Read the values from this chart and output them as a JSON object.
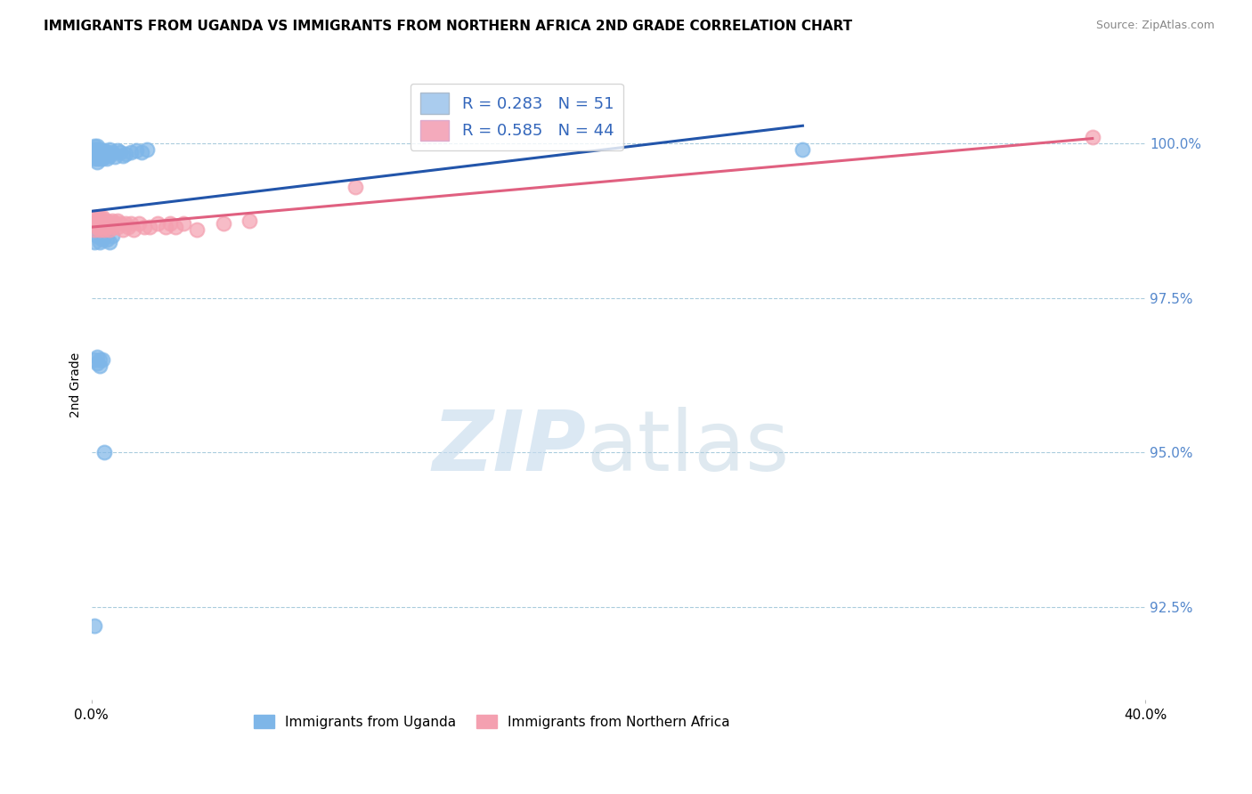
{
  "title": "IMMIGRANTS FROM UGANDA VS IMMIGRANTS FROM NORTHERN AFRICA 2ND GRADE CORRELATION CHART",
  "source": "Source: ZipAtlas.com",
  "xlabel_bottom": "Immigrants from Uganda",
  "xlabel_right_label": "Immigrants from Northern Africa",
  "ylabel": "2nd Grade",
  "xlim": [
    0.0,
    0.4
  ],
  "ylim": [
    0.91,
    1.012
  ],
  "x_ticks": [
    0.0,
    0.4
  ],
  "x_tick_labels": [
    "0.0%",
    "40.0%"
  ],
  "y_ticks": [
    0.925,
    0.95,
    0.975,
    1.0
  ],
  "y_tick_labels": [
    "92.5%",
    "95.0%",
    "97.5%",
    "100.0%"
  ],
  "legend_R_blue": "0.283",
  "legend_N_blue": "51",
  "legend_R_pink": "0.585",
  "legend_N_pink": "44",
  "blue_color": "#7EB6E8",
  "pink_color": "#F4A0B0",
  "blue_line_color": "#2255AA",
  "pink_line_color": "#E06080",
  "blue_legend_color": "#AACCEE",
  "pink_legend_color": "#F4AABC",
  "uganda_x": [
    0.001,
    0.001,
    0.001,
    0.001,
    0.001,
    0.002,
    0.002,
    0.002,
    0.002,
    0.002,
    0.002,
    0.003,
    0.003,
    0.003,
    0.003,
    0.004,
    0.004,
    0.005,
    0.005,
    0.006,
    0.006,
    0.007,
    0.007,
    0.008,
    0.009,
    0.01,
    0.011,
    0.012,
    0.013,
    0.015,
    0.017,
    0.019,
    0.021,
    0.001,
    0.002,
    0.003,
    0.003,
    0.004,
    0.005,
    0.006,
    0.007,
    0.008,
    0.001,
    0.002,
    0.002,
    0.003,
    0.003,
    0.004,
    0.005,
    0.001,
    0.27
  ],
  "uganda_y": [
    0.999,
    0.998,
    0.9995,
    0.9985,
    0.9975,
    0.999,
    0.9985,
    0.9975,
    0.9995,
    0.998,
    0.997,
    0.9985,
    0.9975,
    0.999,
    0.998,
    0.9985,
    0.9975,
    0.9988,
    0.9978,
    0.9985,
    0.9975,
    0.999,
    0.998,
    0.9985,
    0.9978,
    0.9988,
    0.9985,
    0.998,
    0.9982,
    0.9985,
    0.9988,
    0.9985,
    0.999,
    0.984,
    0.985,
    0.9855,
    0.984,
    0.9845,
    0.985,
    0.9845,
    0.984,
    0.985,
    0.965,
    0.9655,
    0.9645,
    0.965,
    0.964,
    0.965,
    0.95,
    0.922,
    0.999
  ],
  "nafr_x": [
    0.001,
    0.001,
    0.001,
    0.002,
    0.002,
    0.002,
    0.003,
    0.003,
    0.003,
    0.003,
    0.004,
    0.004,
    0.004,
    0.005,
    0.005,
    0.006,
    0.006,
    0.007,
    0.007,
    0.008,
    0.008,
    0.009,
    0.01,
    0.01,
    0.011,
    0.012,
    0.013,
    0.014,
    0.015,
    0.016,
    0.018,
    0.02,
    0.022,
    0.025,
    0.028,
    0.03,
    0.032,
    0.035,
    0.04,
    0.05,
    0.06,
    0.1,
    0.38,
    0.003
  ],
  "nafr_y": [
    0.988,
    0.987,
    0.986,
    0.9875,
    0.9865,
    0.988,
    0.987,
    0.988,
    0.986,
    0.987,
    0.9875,
    0.9865,
    0.988,
    0.987,
    0.986,
    0.9875,
    0.9865,
    0.987,
    0.986,
    0.9875,
    0.9865,
    0.987,
    0.9875,
    0.9865,
    0.987,
    0.986,
    0.987,
    0.9865,
    0.987,
    0.986,
    0.987,
    0.9865,
    0.9865,
    0.987,
    0.9865,
    0.987,
    0.9865,
    0.987,
    0.986,
    0.987,
    0.9875,
    0.993,
    1.001,
    0.9865
  ]
}
